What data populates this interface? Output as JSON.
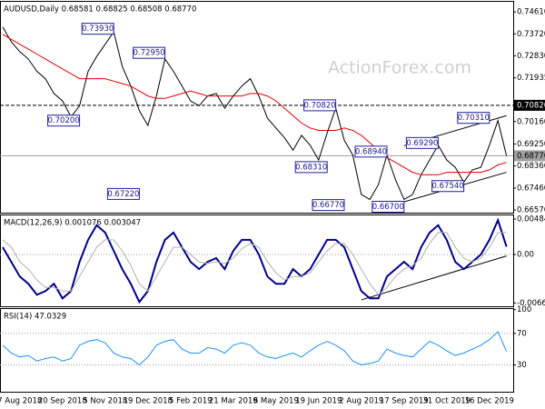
{
  "chart_data": [
    {
      "type": "line",
      "title": "AUDUSD,Daily  0.68581 0.68825 0.68508 0.68770",
      "watermark": "ActionForex.com",
      "ylim": [
        0.6646,
        0.7506
      ],
      "yticks": [
        {
          "value": 0.7461,
          "label": "0.74610"
        },
        {
          "value": 0.7372,
          "label": "0.73720"
        },
        {
          "value": 0.7283,
          "label": "0.72830"
        },
        {
          "value": 0.71935,
          "label": "0.71935"
        },
        {
          "value": 0.7016,
          "label": "0.70160"
        },
        {
          "value": 0.6925,
          "label": "0.69250"
        },
        {
          "value": 0.6836,
          "label": "0.68360"
        },
        {
          "value": 0.6746,
          "label": "0.67460"
        },
        {
          "value": 0.6657,
          "label": "0.66570"
        }
      ],
      "series": [
        {
          "color": "#000000",
          "values": [
            0.74,
            0.734,
            0.73,
            0.727,
            0.722,
            0.719,
            0.713,
            0.71,
            0.7035,
            0.708,
            0.722,
            0.728,
            0.733,
            0.738,
            0.724,
            0.716,
            0.706,
            0.7,
            0.712,
            0.727,
            0.722,
            0.716,
            0.71,
            0.708,
            0.712,
            0.713,
            0.707,
            0.712,
            0.716,
            0.719,
            0.712,
            0.703,
            0.699,
            0.695,
            0.69,
            0.696,
            0.692,
            0.686,
            0.697,
            0.707,
            0.694,
            0.688,
            0.672,
            0.67,
            0.676,
            0.688,
            0.678,
            0.67,
            0.672,
            0.68,
            0.686,
            0.692,
            0.686,
            0.683,
            0.677,
            0.682,
            0.683,
            0.692,
            0.702,
            0.6877
          ]
        },
        {
          "color": "#e00000",
          "values": [
            0.737,
            0.735,
            0.733,
            0.731,
            0.729,
            0.727,
            0.725,
            0.723,
            0.721,
            0.719,
            0.719,
            0.719,
            0.719,
            0.718,
            0.717,
            0.716,
            0.714,
            0.712,
            0.711,
            0.711,
            0.712,
            0.713,
            0.714,
            0.713,
            0.712,
            0.712,
            0.712,
            0.712,
            0.712,
            0.713,
            0.713,
            0.712,
            0.71,
            0.707,
            0.704,
            0.701,
            0.699,
            0.698,
            0.698,
            0.698,
            0.699,
            0.698,
            0.696,
            0.693,
            0.69,
            0.687,
            0.685,
            0.683,
            0.681,
            0.68,
            0.68,
            0.68,
            0.681,
            0.681,
            0.681,
            0.681,
            0.681,
            0.682,
            0.684,
            0.685
          ]
        }
      ],
      "levels": [
        {
          "value": 0.7082,
          "label": "0.70820",
          "style": "dashed",
          "color": "#000000"
        },
        {
          "value": 0.6877,
          "label": "0.68770",
          "style": "solid",
          "color": "#a0a0a0"
        }
      ],
      "annotations": [
        {
          "x": 13,
          "value": 0.7393,
          "label": "0.73930"
        },
        {
          "x": 9,
          "value": 0.702,
          "label": "0.70200"
        },
        {
          "x": 16,
          "value": 0.6722,
          "label": "0.67220"
        },
        {
          "x": 19,
          "value": 0.7295,
          "label": "0.72950"
        },
        {
          "x": 39,
          "value": 0.7082,
          "label": "0.70820"
        },
        {
          "x": 38,
          "value": 0.6831,
          "label": "0.68310"
        },
        {
          "x": 40,
          "value": 0.6677,
          "label": "0.66770"
        },
        {
          "x": 47,
          "value": 0.667,
          "label": "0.66700"
        },
        {
          "x": 45,
          "value": 0.6894,
          "label": "0.68940"
        },
        {
          "x": 51,
          "value": 0.6929,
          "label": "0.69290"
        },
        {
          "x": 54,
          "value": 0.6754,
          "label": "0.67540"
        },
        {
          "x": 57,
          "value": 0.7031,
          "label": "0.70310"
        }
      ],
      "trendlines": [
        {
          "x1": 47,
          "y1": 0.6918,
          "x2": 59,
          "y2": 0.704
        },
        {
          "x1": 44,
          "y1": 0.666,
          "x2": 59,
          "y2": 0.681
        }
      ]
    },
    {
      "type": "line",
      "title": "MACD(12,26,9) 0.001076 0.003047",
      "ylim": [
        -0.00708,
        0.00547
      ],
      "yticks": [
        0.004847,
        {
          "value": 0,
          "label": "0.00"
        },
        -0.006624
      ],
      "series": [
        {
          "color": "#00008b",
          "width": 2,
          "values": [
            0.001,
            -0.001,
            -0.003,
            -0.004,
            -0.0055,
            -0.005,
            -0.004,
            -0.006,
            -0.005,
            -0.001,
            0.002,
            0.004,
            0.003,
            0.0005,
            -0.002,
            -0.004,
            -0.0065,
            -0.005,
            -0.001,
            0.002,
            0.003,
            0.001,
            -0.001,
            -0.002,
            -0.001,
            -0.0005,
            -0.002,
            0.0005,
            0.002,
            0.002,
            0,
            -0.003,
            -0.004,
            -0.004,
            -0.002,
            -0.003,
            -0.002,
            0,
            0.002,
            0.002,
            0.001,
            -0.002,
            -0.005,
            -0.006,
            -0.006,
            -0.003,
            -0.002,
            -0.001,
            -0.002,
            0.001,
            0.003,
            0.004,
            0.002,
            -0.001,
            -0.002,
            -0.001,
            0,
            0.002,
            0.0047,
            0.001076
          ]
        },
        {
          "color": "#b0b0b0",
          "width": 1,
          "values": [
            0.002,
            0.001,
            -0.001,
            -0.002,
            -0.0035,
            -0.0045,
            -0.0045,
            -0.005,
            -0.005,
            -0.003,
            -0.001,
            0.001,
            0.002,
            0.002,
            0.0005,
            -0.0015,
            -0.004,
            -0.005,
            -0.003,
            -0.001,
            0.001,
            0.001,
            0,
            -0.001,
            -0.0012,
            -0.001,
            -0.0012,
            -0.0005,
            0.0008,
            0.0015,
            0.001,
            -0.001,
            -0.0025,
            -0.0035,
            -0.003,
            -0.003,
            -0.0025,
            -0.001,
            0.0005,
            0.0015,
            0.0015,
            0,
            -0.002,
            -0.004,
            -0.0055,
            -0.0045,
            -0.003,
            -0.002,
            -0.0015,
            -0.0005,
            0.0015,
            0.003,
            0.003,
            0.001,
            -0.0005,
            -0.001,
            -0.0005,
            0.001,
            0.003,
            0.003047
          ]
        }
      ],
      "levels": [
        0
      ],
      "trendlines": [
        {
          "x1": 42,
          "y1": -0.0062,
          "x2": 59,
          "y2": -0.0002
        }
      ]
    },
    {
      "type": "line",
      "title": "RSI(14) 47.0329",
      "ylim": [
        -4,
        102
      ],
      "yticks": [
        100,
        70,
        30
      ],
      "series": [
        {
          "color": "#1e90ff",
          "width": 1,
          "values": [
            55,
            45,
            40,
            42,
            35,
            38,
            40,
            35,
            38,
            55,
            60,
            62,
            58,
            45,
            40,
            38,
            30,
            40,
            55,
            60,
            62,
            50,
            45,
            45,
            52,
            50,
            45,
            55,
            58,
            55,
            45,
            40,
            38,
            42,
            45,
            40,
            48,
            55,
            60,
            55,
            48,
            35,
            30,
            32,
            35,
            50,
            45,
            42,
            40,
            50,
            60,
            55,
            48,
            42,
            45,
            50,
            55,
            62,
            72,
            47.0329
          ]
        }
      ],
      "levels": [
        70,
        30
      ],
      "categories": [
        null,
        null,
        "7 Aug 2018",
        null,
        null,
        null,
        null,
        "20 Sep 2018",
        null,
        null,
        null,
        null,
        "5 Nov 2018",
        null,
        null,
        null,
        null,
        "19 Dec 2018",
        null,
        null,
        null,
        null,
        "5 Feb 2019",
        null,
        null,
        null,
        null,
        "21 Mar 2019",
        null,
        null,
        null,
        null,
        "6 May 2019",
        null,
        null,
        null,
        null,
        "19 Jun 2019",
        null,
        null,
        null,
        null,
        "2 Aug 2019",
        null,
        null,
        null,
        null,
        "17 Sep 2019",
        null,
        null,
        null,
        null,
        "31 Oct 2019",
        null,
        null,
        null,
        null,
        "16 Dec 2019",
        null,
        null
      ]
    }
  ]
}
